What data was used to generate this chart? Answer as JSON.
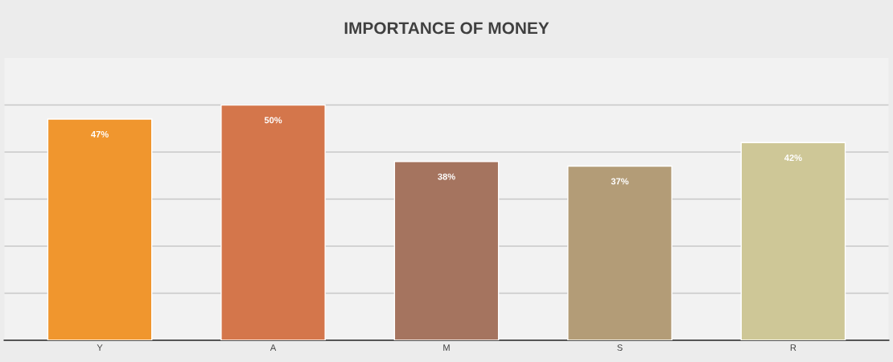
{
  "chart_data": {
    "type": "bar",
    "title": "IMPORTANCE OF MONEY",
    "categories": [
      "Y",
      "A",
      "M",
      "S",
      "R"
    ],
    "values": [
      47,
      50,
      38,
      37,
      42
    ],
    "colors": [
      "#f0962e",
      "#d4764b",
      "#a5745f",
      "#b39c77",
      "#cec797"
    ],
    "value_labels": [
      "47%",
      "50%",
      "38%",
      "37%",
      "42%"
    ],
    "ylim": [
      0,
      60
    ],
    "yticks": [
      {
        "value": 0,
        "label": null
      },
      {
        "value": 10,
        "label": null
      },
      {
        "value": 20,
        "label": null
      },
      {
        "value": 30,
        "label": null
      },
      {
        "value": 40,
        "label": null
      },
      {
        "value": 50,
        "label": null
      }
    ],
    "grid": "y",
    "tick_labels": "x",
    "legend": false
  }
}
